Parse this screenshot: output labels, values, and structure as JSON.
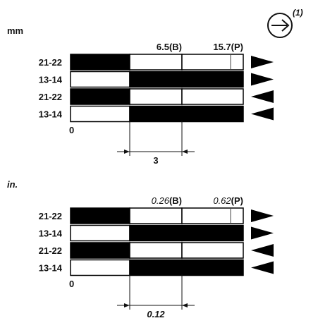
{
  "symbol": {
    "icon": "right-arrow-circle-icon",
    "label": "(1)"
  },
  "sections": [
    {
      "unit": "mm",
      "italic": false,
      "markers": [
        {
          "value": "6.5",
          "suffix": "(B)"
        },
        {
          "value": "15.7",
          "suffix": "(P)"
        }
      ],
      "zero": "0",
      "dimension": "3",
      "rows": [
        {
          "label": "21-22",
          "segments": [
            "black",
            "white",
            "white"
          ],
          "arrow": "right"
        },
        {
          "label": "13-14",
          "segments": [
            "white",
            "black",
            "black"
          ],
          "arrow": "right"
        },
        {
          "label": "21-22",
          "segments": [
            "black",
            "white",
            "white"
          ],
          "arrow": "left"
        },
        {
          "label": "13-14",
          "segments": [
            "white",
            "black",
            "black"
          ],
          "arrow": "left"
        }
      ]
    },
    {
      "unit": "in.",
      "italic": true,
      "markers": [
        {
          "value": "0.26",
          "suffix": "(B)"
        },
        {
          "value": "0.62",
          "suffix": "(P)"
        }
      ],
      "zero": "0",
      "dimension": "0.12",
      "rows": [
        {
          "label": "21-22",
          "segments": [
            "black",
            "white",
            "white"
          ],
          "arrow": "right"
        },
        {
          "label": "13-14",
          "segments": [
            "white",
            "black",
            "black"
          ],
          "arrow": "right"
        },
        {
          "label": "21-22",
          "segments": [
            "black",
            "white",
            "white"
          ],
          "arrow": "left"
        },
        {
          "label": "13-14",
          "segments": [
            "white",
            "black",
            "black"
          ],
          "arrow": "left"
        }
      ]
    }
  ]
}
